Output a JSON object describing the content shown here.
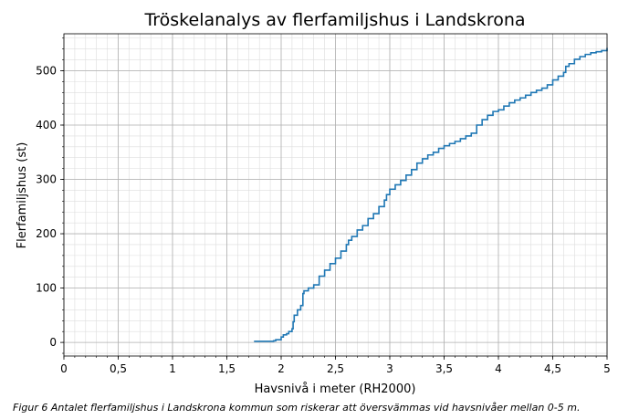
{
  "chart_data": {
    "type": "line",
    "title": "Tröskelanalys av flerfamiljshus i Landskrona",
    "xlabel": "Havsnivå i meter (RH2000)",
    "ylabel": "Flerfamiljshus (st)",
    "xlim": [
      0,
      5
    ],
    "ylim": [
      -25,
      568
    ],
    "xticks": [
      0,
      0.5,
      1,
      1.5,
      2,
      2.5,
      3,
      3.5,
      4,
      4.5,
      5
    ],
    "xtick_labels": [
      "0",
      "0,5",
      "1",
      "1,5",
      "2",
      "2,5",
      "3",
      "3,5",
      "4",
      "4,5",
      "5"
    ],
    "yticks": [
      0,
      100,
      200,
      300,
      400,
      500
    ],
    "ytick_labels": [
      "0",
      "100",
      "200",
      "300",
      "400",
      "500"
    ],
    "grid": "major and minor",
    "series": [
      {
        "color": "#1f77b4",
        "x": [
          1.75,
          1.85,
          1.93,
          1.95,
          2.0,
          2.02,
          2.05,
          2.07,
          2.1,
          2.11,
          2.12,
          2.15,
          2.18,
          2.2,
          2.21,
          2.25,
          2.3,
          2.35,
          2.4,
          2.45,
          2.5,
          2.55,
          2.6,
          2.62,
          2.65,
          2.7,
          2.75,
          2.8,
          2.85,
          2.9,
          2.95,
          2.97,
          3.0,
          3.05,
          3.1,
          3.15,
          3.2,
          3.25,
          3.3,
          3.35,
          3.4,
          3.45,
          3.5,
          3.55,
          3.6,
          3.65,
          3.7,
          3.75,
          3.8,
          3.85,
          3.9,
          3.95,
          4.0,
          4.05,
          4.1,
          4.15,
          4.2,
          4.25,
          4.3,
          4.35,
          4.4,
          4.45,
          4.5,
          4.55,
          4.6,
          4.62,
          4.65,
          4.7,
          4.75,
          4.8,
          4.85,
          4.9,
          4.95,
          5.0
        ],
        "y": [
          2,
          2,
          3,
          5,
          10,
          14,
          16,
          20,
          25,
          38,
          50,
          60,
          68,
          90,
          95,
          100,
          106,
          122,
          133,
          145,
          155,
          168,
          180,
          188,
          195,
          207,
          215,
          228,
          237,
          250,
          262,
          272,
          282,
          290,
          298,
          308,
          318,
          330,
          338,
          345,
          350,
          357,
          362,
          366,
          370,
          375,
          380,
          385,
          400,
          410,
          418,
          425,
          428,
          435,
          441,
          446,
          450,
          455,
          460,
          464,
          468,
          474,
          483,
          490,
          497,
          508,
          513,
          521,
          526,
          530,
          533,
          535,
          537,
          542
        ]
      }
    ]
  },
  "caption": "Figur 6 Antalet flerfamiljshus i Landskrona kommun som riskerar att översvämmas vid havsnivåer mellan 0-5 m."
}
